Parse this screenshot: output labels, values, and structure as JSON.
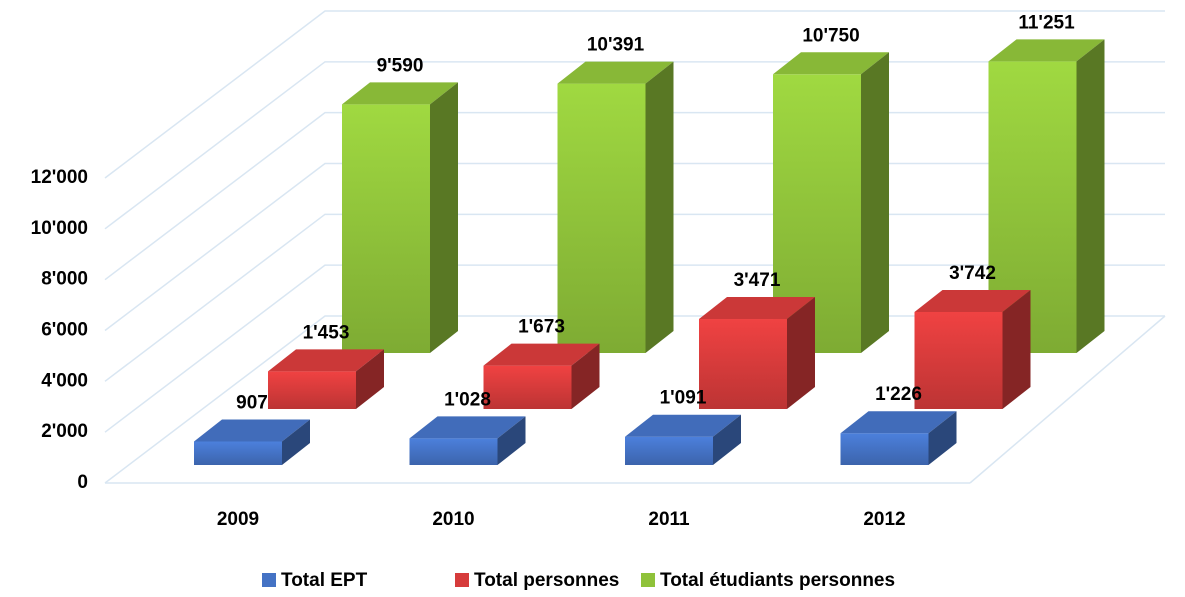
{
  "chart_data": {
    "type": "bar3d",
    "categories": [
      "2009",
      "2010",
      "2011",
      "2012"
    ],
    "series": [
      {
        "name": "Total EPT",
        "color": "#4472c4",
        "values": [
          907,
          1028,
          1091,
          1226
        ],
        "value_labels": [
          "907",
          "1'028",
          "1'091",
          "1'226"
        ]
      },
      {
        "name": "Total personnes",
        "color": "#d63b3b",
        "values": [
          1453,
          1673,
          3471,
          3742
        ],
        "value_labels": [
          "1'453",
          "1'673",
          "3'471",
          "3'742"
        ]
      },
      {
        "name": "Total étudiants personnes",
        "color": "#8fc23a",
        "values": [
          9590,
          10391,
          10750,
          11251
        ],
        "value_labels": [
          "9'590",
          "10'391",
          "10'750",
          "11'251"
        ]
      }
    ],
    "ylim": [
      0,
      12000
    ],
    "yticks": [
      0,
      {
        "value": 2000,
        "label": "2'000"
      },
      {
        "value": 4000,
        "label": "4'000"
      },
      {
        "value": 6000,
        "label": "6'000"
      },
      {
        "value": 8000,
        "label": "8'000"
      },
      {
        "value": 10000,
        "label": "10'000"
      },
      {
        "value": 12000,
        "label": "12'000"
      }
    ],
    "grid": true,
    "legend": "bottom"
  }
}
